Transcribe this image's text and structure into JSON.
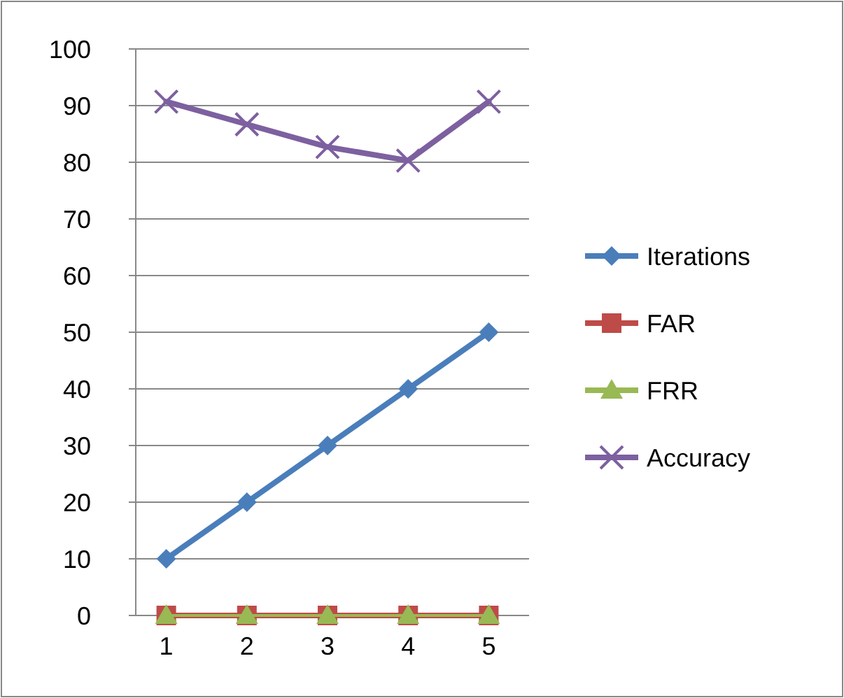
{
  "chart_data": {
    "type": "line",
    "categories": [
      "1",
      "2",
      "3",
      "4",
      "5"
    ],
    "series": [
      {
        "name": "Iterations",
        "color": "#4a7ebb",
        "values": [
          10,
          20,
          30,
          40,
          50
        ],
        "marker": "diamond"
      },
      {
        "name": "FAR",
        "color": "#be4b48",
        "values": [
          0,
          0,
          0,
          0,
          0
        ],
        "marker": "square"
      },
      {
        "name": "FRR",
        "color": "#98b954",
        "values": [
          0,
          0,
          0,
          0,
          0
        ],
        "marker": "triangle"
      },
      {
        "name": "Accuracy",
        "color": "#7d60a0",
        "values": [
          90.7,
          86.7,
          82.7,
          80.3,
          90.7
        ],
        "marker": "cross"
      }
    ],
    "ylim": [
      0,
      100
    ],
    "yticks": [
      0,
      10,
      20,
      30,
      40,
      50,
      60,
      70,
      80,
      90,
      100
    ],
    "grid": "y",
    "legend": "right"
  }
}
